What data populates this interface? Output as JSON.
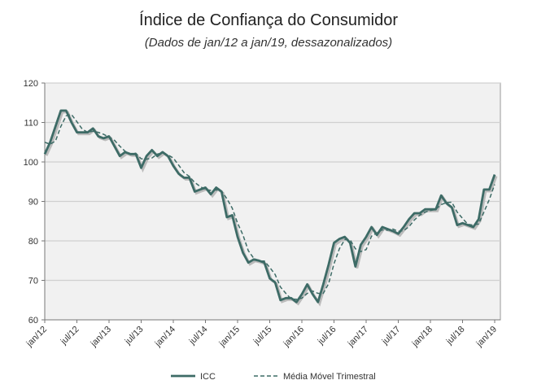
{
  "chart_data": {
    "type": "line",
    "title": "Índice de Confiança do Consumidor",
    "subtitle": "(Dados de jan/12 a jan/19, dessazonalizados)",
    "xlabel": "",
    "ylabel": "",
    "ylim": [
      60,
      120
    ],
    "yticks": [
      "60",
      "70",
      "80",
      "90",
      "100",
      "110",
      "120"
    ],
    "xticks": [
      "jan/12",
      "jul/12",
      "jan/13",
      "jul/13",
      "jan/14",
      "jul/14",
      "jan/15",
      "jul/15",
      "jan/16",
      "jul/16",
      "jan/17",
      "jul/17",
      "jan/18",
      "jul/18",
      "jan/19"
    ],
    "grid": true,
    "legend": "bottom",
    "series": [
      {
        "name": "ICC",
        "style": "solid",
        "color": "#3d6b66",
        "values": [
          102,
          105,
          109,
          113,
          113,
          110,
          107.5,
          107.5,
          107.5,
          108.5,
          106.5,
          106,
          106.5,
          104,
          101.5,
          102.5,
          102,
          102,
          98.5,
          101.5,
          103,
          101.5,
          102.5,
          101.5,
          99,
          97,
          96,
          96,
          92.5,
          93,
          93.5,
          91.8,
          93.5,
          92.5,
          86,
          86.5,
          81,
          77,
          74.5,
          75.3,
          75,
          74.5,
          70.5,
          69.5,
          65,
          65.5,
          65.5,
          64.5,
          66.5,
          69,
          66.5,
          64.5,
          69,
          74,
          79.5,
          80.5,
          81,
          79.5,
          73.5,
          79,
          81,
          83.5,
          81.5,
          83.5,
          83,
          82.5,
          81.8,
          83.5,
          85.5,
          87,
          87,
          88,
          88,
          88,
          91.5,
          89.5,
          88.5,
          84,
          84.5,
          84,
          83.5,
          85.5,
          93,
          93,
          96.8
        ]
      },
      {
        "name": "Média Móvel Trimestral",
        "style": "dashed",
        "color": "#3d6b66",
        "values": [
          105,
          104.5,
          105.3,
          109,
          111.7,
          112,
          110.2,
          108.3,
          107.5,
          107.8,
          107.5,
          107,
          106.3,
          105.5,
          104,
          102.7,
          102,
          102.2,
          100.8,
          100.7,
          101,
          102,
          102.3,
          101.8,
          101,
          99.2,
          97.3,
          96.3,
          94.8,
          93.8,
          93,
          92.8,
          92.9,
          92.6,
          90.7,
          88.3,
          84.5,
          81.5,
          77.5,
          75.6,
          74.9,
          74.9,
          73.3,
          71.5,
          68.3,
          66.7,
          65.3,
          65.2,
          65.5,
          66.7,
          67.3,
          66.7,
          66.7,
          69.2,
          74.2,
          78,
          80.3,
          80.3,
          78,
          77.3,
          77.8,
          81.2,
          82,
          82.8,
          82.7,
          83,
          82.4,
          82.6,
          83.6,
          85.3,
          86.5,
          87.3,
          87.7,
          88,
          89.2,
          89.7,
          89.8,
          87.3,
          85.7,
          84.2,
          84,
          84.3,
          87.3,
          90.5,
          94.3
        ]
      }
    ]
  }
}
